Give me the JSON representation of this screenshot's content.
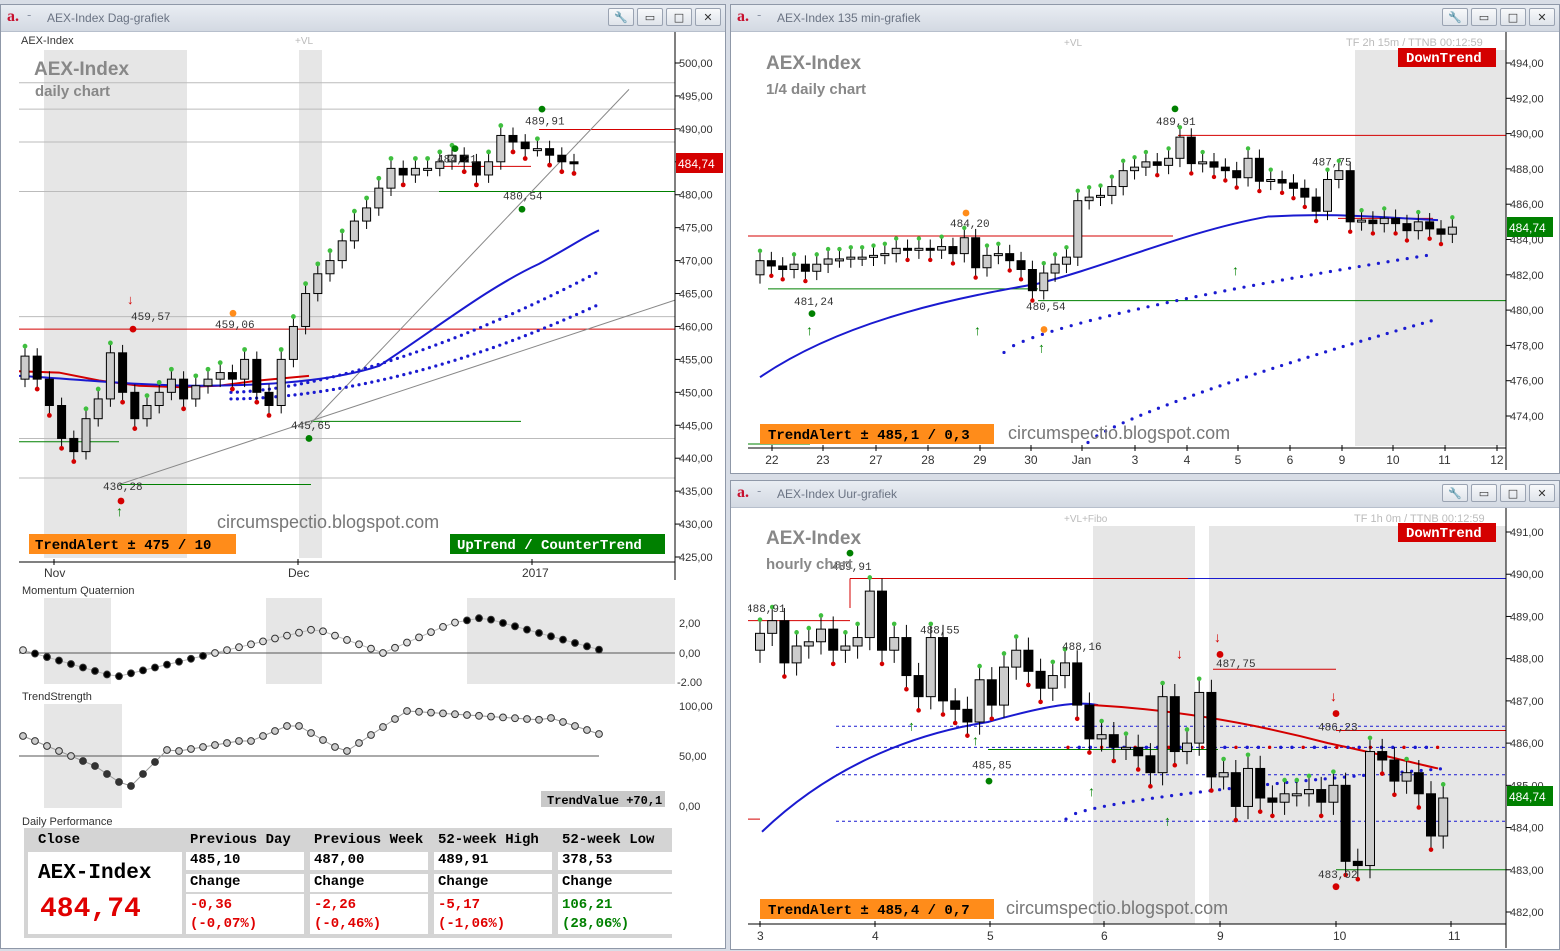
{
  "windows": {
    "daily": {
      "title": "AEX-Index Dag-grafiek"
    },
    "min135": {
      "title": "AEX-Index 135 min-grafiek"
    },
    "hourly": {
      "title": "AEX-Index Uur-grafiek"
    }
  },
  "window_buttons": [
    "wrench-icon",
    "minimize-icon",
    "maximize-icon",
    "close-icon"
  ],
  "daily_panel": {
    "header_left": "AEX-Index",
    "header_vl": "+VL",
    "name": "AEX-Index",
    "sub": "daily chart",
    "trendalert": "TrendAlert ± 475 / 10",
    "uptrend": "UpTrend / CounterTrend",
    "watermark": "circumspectio.blogspot.com",
    "price_tag": "484,74",
    "momentum_label": "Momentum Quaternion",
    "trendstrength_label": "TrendStrength",
    "trendvalue": "TrendValue +70,1",
    "performance_label": "Daily Performance"
  },
  "min135_panel": {
    "header_vl": "+VL",
    "tf": "TF 2h 15m / TTNB 00:12:59",
    "name": "AEX-Index",
    "sub": "1/4 daily chart",
    "downtrend": "DownTrend",
    "trendalert": "TrendAlert ± 485,1 / 0,3",
    "watermark": "circumspectio.blogspot.com",
    "price_tag": "484,74"
  },
  "hourly_panel": {
    "header_vl": "+VL+Fibo",
    "tf": "TF 1h 0m / TTNB 00:12:59",
    "name": "AEX-Index",
    "sub": "hourly chart",
    "downtrend": "DownTrend",
    "trendalert": "TrendAlert ± 485,4 / 0,7",
    "watermark": "circumspectio.blogspot.com",
    "price_tag": "484,74"
  },
  "performance": {
    "close_label": "Close",
    "name": "AEX-Index",
    "close_value": "484,74",
    "columns": [
      {
        "header": "Previous Day",
        "value": "485,10",
        "change_label": "Change",
        "change": "-0,36",
        "change_pct": "(-0,07%)",
        "color": "#e00000"
      },
      {
        "header": "Previous Week",
        "value": "487,00",
        "change_label": "Change",
        "change": "-2,26",
        "change_pct": "(-0,46%)",
        "color": "#e00000"
      },
      {
        "header": "52-week High",
        "value": "489,91",
        "change_label": "Change",
        "change": "-5,17",
        "change_pct": "(-1,06%)",
        "color": "#e00000"
      },
      {
        "header": "52-week Low",
        "value": "378,53",
        "change_label": "Change",
        "change": "106,21",
        "change_pct": "(28,06%)",
        "color": "#008000"
      }
    ]
  },
  "chart_data": [
    {
      "type": "candlestick",
      "title": "AEX-Index daily chart",
      "ylim": [
        425,
        500
      ],
      "y_ticks": [
        "500,00",
        "495,00",
        "490,00",
        "485,00",
        "480,00",
        "475,00",
        "470,00",
        "465,00",
        "460,00",
        "455,00",
        "450,00",
        "445,00",
        "440,00",
        "435,00",
        "430,00",
        "425,00"
      ],
      "x_ticks": [
        "Nov",
        "Dec",
        "2017"
      ],
      "annotations": [
        "459,57",
        "459,06",
        "445,65",
        "436,28",
        "484,21",
        "489,91",
        "480,54"
      ],
      "close": [
        455.5,
        452,
        448,
        443,
        441,
        446,
        449,
        456,
        450,
        446,
        448,
        450,
        452,
        449,
        451,
        452,
        453,
        452,
        455,
        450,
        448,
        455,
        460,
        465,
        468,
        470,
        473,
        476,
        478,
        481,
        484,
        483,
        484,
        484,
        485,
        486,
        485,
        483,
        485,
        489,
        488,
        487,
        487,
        486,
        485,
        484.74
      ]
    },
    {
      "type": "candlestick",
      "title": "AEX-Index 1/4 daily chart",
      "ylim": [
        472,
        495
      ],
      "y_ticks": [
        "494,00",
        "492,00",
        "490,00",
        "488,00",
        "486,00",
        "484,00",
        "482,00",
        "480,00",
        "478,00",
        "476,00",
        "474,00"
      ],
      "x_ticks": [
        "22",
        "23",
        "27",
        "28",
        "29",
        "30",
        "Jan",
        "3",
        "4",
        "5",
        "6",
        "9",
        "10",
        "11",
        "12"
      ],
      "annotations": [
        "481,24",
        "484,20",
        "480,54",
        "489,91",
        "487,75"
      ]
    },
    {
      "type": "candlestick",
      "title": "AEX-Index hourly chart",
      "ylim": [
        481.8,
        491.2
      ],
      "y_ticks": [
        "491,00",
        "490,00",
        "489,00",
        "488,00",
        "487,00",
        "486,00",
        "485,00",
        "484,00",
        "483,00",
        "482,00"
      ],
      "x_ticks": [
        "3",
        "4",
        "5",
        "6",
        "9",
        "10",
        "11"
      ],
      "annotations": [
        "488,91",
        "489,91",
        "488,55",
        "488,16",
        "485,85",
        "487,75",
        "486,23",
        "483,02"
      ]
    }
  ]
}
